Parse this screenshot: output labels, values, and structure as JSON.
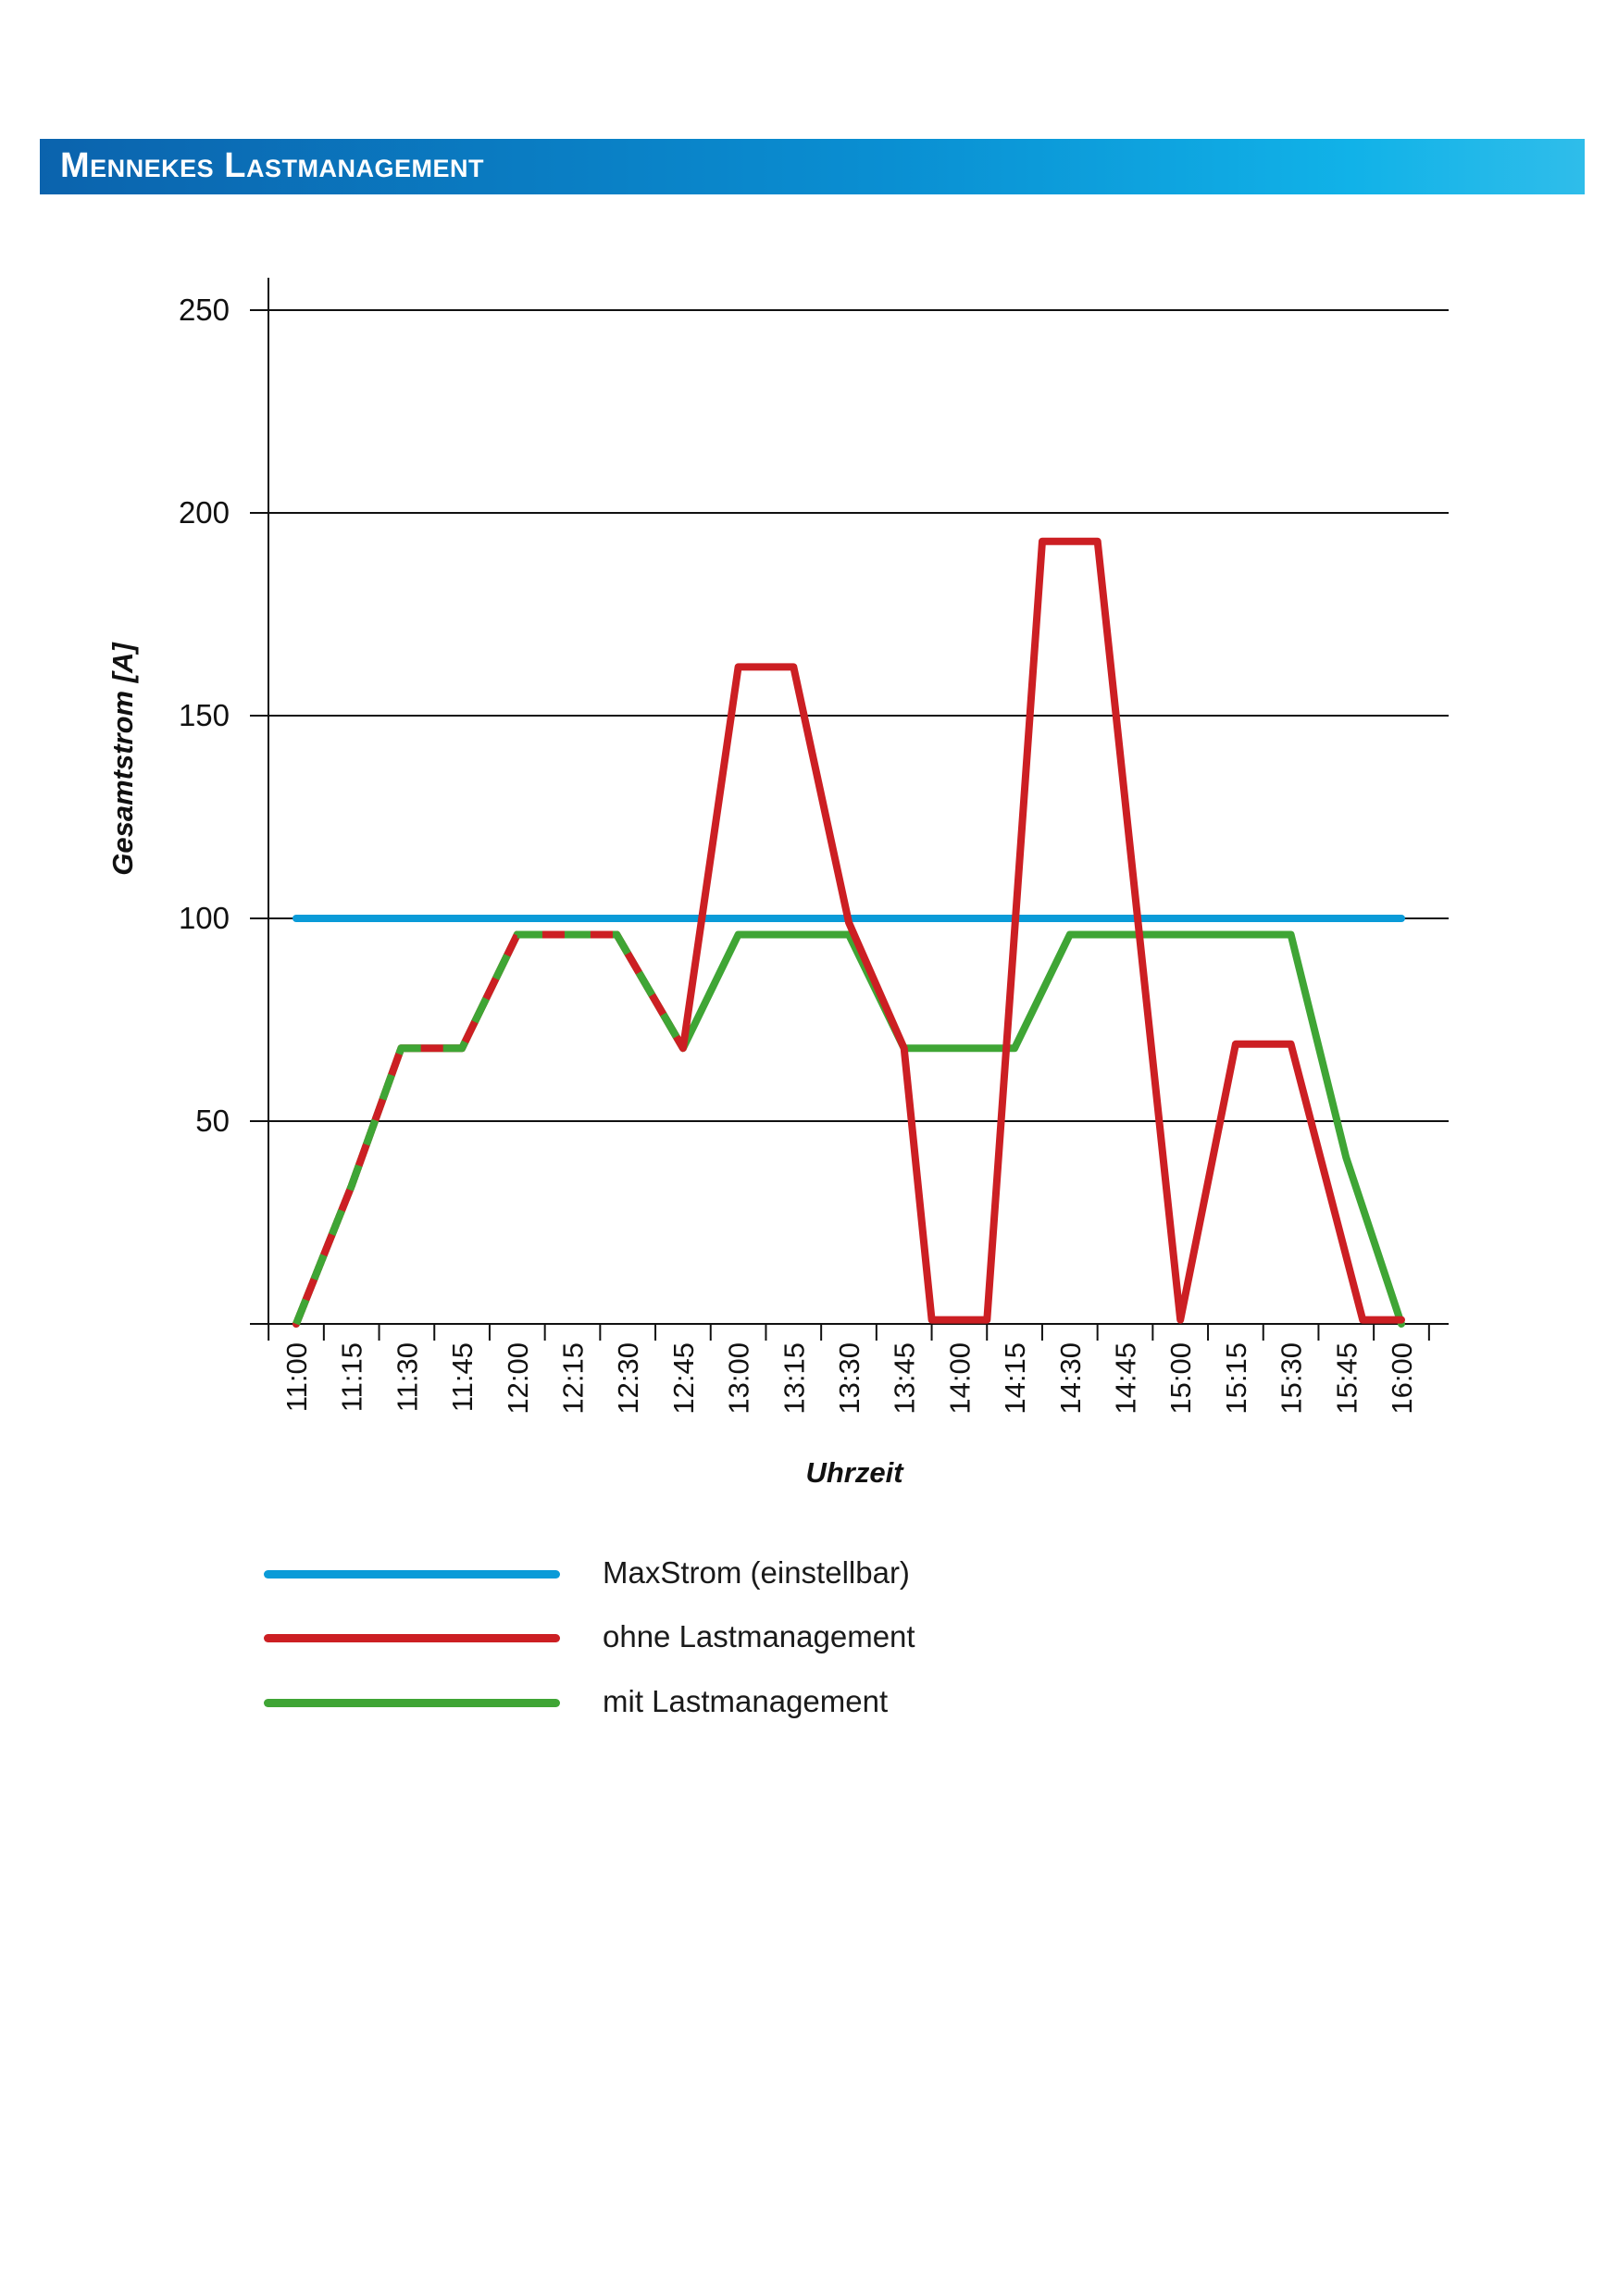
{
  "header": {
    "title": "Mennekes Lastmanagement"
  },
  "chart_data": {
    "type": "line",
    "title": "",
    "xlabel": "Uhrzeit",
    "ylabel": "Gesamtstrom [A]",
    "ylim": [
      0,
      250
    ],
    "yticks": [
      50,
      100,
      150,
      200,
      250
    ],
    "grid": true,
    "legend_position": "bottom",
    "categories": [
      "11:00",
      "11:15",
      "11:30",
      "11:45",
      "12:00",
      "12:15",
      "12:30",
      "12:45",
      "13:00",
      "13:15",
      "13:30",
      "13:45",
      "14:00",
      "14:15",
      "14:30",
      "14:45",
      "15:00",
      "15:15",
      "15:30",
      "15:45",
      "16:00"
    ],
    "series": [
      {
        "name": "MaxStrom (einstellbar)",
        "color": "#0a9bd8",
        "points": [
          [
            0,
            100
          ],
          [
            20,
            100
          ]
        ]
      },
      {
        "name": "ohne Lastmanagement",
        "color": "#cc1f23",
        "points": [
          [
            0,
            0
          ],
          [
            1,
            34
          ],
          [
            1.9,
            68
          ],
          [
            3,
            68
          ],
          [
            4,
            96
          ],
          [
            5,
            96
          ],
          [
            5.8,
            96
          ],
          [
            7,
            68
          ],
          [
            8,
            162
          ],
          [
            9,
            162
          ],
          [
            10,
            99
          ],
          [
            11,
            68
          ],
          [
            11.5,
            1
          ],
          [
            12.5,
            1
          ],
          [
            13.5,
            193
          ],
          [
            14.5,
            193
          ],
          [
            16,
            1
          ],
          [
            17,
            69
          ],
          [
            18,
            69
          ],
          [
            19.3,
            1
          ],
          [
            20,
            1
          ]
        ]
      },
      {
        "name": "mit Lastmanagement",
        "color": "#3fa535",
        "dash_overlap_until": 7,
        "points": [
          [
            0,
            0
          ],
          [
            1,
            34
          ],
          [
            1.9,
            68
          ],
          [
            3,
            68
          ],
          [
            4,
            96
          ],
          [
            5,
            96
          ],
          [
            5.8,
            96
          ],
          [
            7,
            68
          ],
          [
            8,
            96
          ],
          [
            9,
            96
          ],
          [
            10,
            96
          ],
          [
            11,
            68
          ],
          [
            12,
            68
          ],
          [
            13,
            68
          ],
          [
            14,
            96
          ],
          [
            15,
            96
          ],
          [
            16,
            96
          ],
          [
            17,
            96
          ],
          [
            18,
            96
          ],
          [
            19,
            41
          ],
          [
            20,
            0
          ]
        ]
      }
    ]
  }
}
